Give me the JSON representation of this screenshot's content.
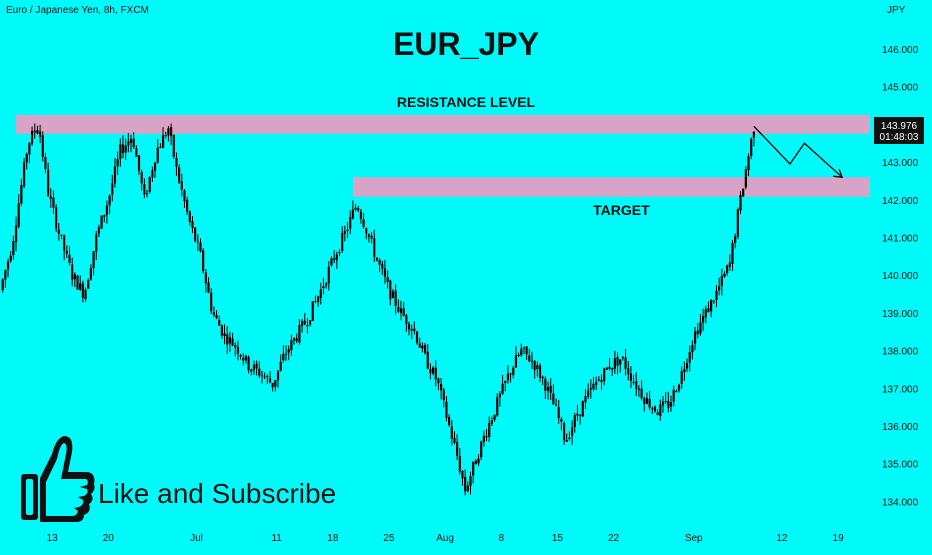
{
  "header": {
    "symbol": "Euro / Japanese Yen, 8h, FXCM",
    "title": "EUR_JPY",
    "currency": "JPY"
  },
  "price_badge": {
    "price": "143.976",
    "countdown": "01:48:03"
  },
  "footer": {
    "cta_text": "Like and Subscribe"
  },
  "colors": {
    "background": "#00fafa",
    "zone": "#d7a3c6",
    "candle": "#000000",
    "badge": "#111111"
  },
  "icons": [
    "thumbs-up-icon",
    "arrow-icon"
  ],
  "chart_data": {
    "type": "candlestick",
    "title": "EUR_JPY",
    "ylabel": "JPY",
    "ylim": [
      133.5,
      146.6
    ],
    "y_ticks": [
      "146.000",
      "145.000",
      "144.000",
      "143.000",
      "142.000",
      "141.000",
      "140.000",
      "139.000",
      "138.000",
      "137.000",
      "136.000",
      "135.000",
      "134.000"
    ],
    "x_ticks": [
      {
        "label": "13",
        "t": 13
      },
      {
        "label": "20",
        "t": 20
      },
      {
        "label": "Jul",
        "t": 31
      },
      {
        "label": "11",
        "t": 41
      },
      {
        "label": "18",
        "t": 48
      },
      {
        "label": "25",
        "t": 55
      },
      {
        "label": "Aug",
        "t": 62
      },
      {
        "label": "8",
        "t": 69
      },
      {
        "label": "15",
        "t": 76
      },
      {
        "label": "22",
        "t": 83
      },
      {
        "label": "Sep",
        "t": 93
      },
      {
        "label": "12",
        "t": 104
      },
      {
        "label": "19",
        "t": 111
      }
    ],
    "x_range": [
      6.5,
      119.5
    ],
    "zones": [
      {
        "label": "RESISTANCE LEVEL",
        "from": 143.75,
        "to": 144.25,
        "t_start": 8.5
      },
      {
        "label": "TARGET",
        "from": 142.08,
        "to": 142.6,
        "t_start": 50.5
      }
    ],
    "last_price": 143.976,
    "projection": [
      [
        100.5,
        143.95
      ],
      [
        105,
        142.95
      ],
      [
        106.8,
        143.5
      ],
      [
        111.5,
        142.6
      ]
    ],
    "closes_path": [
      [
        6.5,
        139.6
      ],
      [
        8,
        140.8
      ],
      [
        10,
        143.5
      ],
      [
        11.3,
        144.0
      ],
      [
        12.5,
        142.2
      ],
      [
        14,
        141.0
      ],
      [
        15.5,
        140.0
      ],
      [
        17,
        139.5
      ],
      [
        18.5,
        141.0
      ],
      [
        20,
        142.0
      ],
      [
        21.5,
        143.3
      ],
      [
        23,
        143.7
      ],
      [
        24.5,
        142.0
      ],
      [
        26,
        143.3
      ],
      [
        27.5,
        143.9
      ],
      [
        28.5,
        142.8
      ],
      [
        30,
        141.5
      ],
      [
        31.5,
        140.5
      ],
      [
        33,
        139.0
      ],
      [
        34.5,
        138.4
      ],
      [
        36,
        138.1
      ],
      [
        37.5,
        137.6
      ],
      [
        39,
        137.4
      ],
      [
        40.5,
        137.1
      ],
      [
        42,
        137.9
      ],
      [
        43.5,
        138.4
      ],
      [
        45,
        138.9
      ],
      [
        46.5,
        139.6
      ],
      [
        48,
        140.4
      ],
      [
        49.5,
        141.1
      ],
      [
        51,
        141.9
      ],
      [
        52.2,
        141.2
      ],
      [
        53.5,
        140.4
      ],
      [
        55,
        139.6
      ],
      [
        56.5,
        139.0
      ],
      [
        58,
        138.6
      ],
      [
        59.5,
        137.8
      ],
      [
        61,
        137.2
      ],
      [
        62.5,
        136.0
      ],
      [
        63.5,
        135.2
      ],
      [
        64.5,
        134.3
      ],
      [
        65.5,
        134.9
      ],
      [
        67,
        135.8
      ],
      [
        68.5,
        136.6
      ],
      [
        70,
        137.4
      ],
      [
        71.5,
        138.0
      ],
      [
        73,
        137.7
      ],
      [
        74.5,
        137.1
      ],
      [
        76,
        136.3
      ],
      [
        77,
        135.6
      ],
      [
        78,
        136.1
      ],
      [
        79.5,
        136.7
      ],
      [
        81,
        137.2
      ],
      [
        82.5,
        137.6
      ],
      [
        84,
        137.8
      ],
      [
        85.5,
        137.2
      ],
      [
        87,
        136.7
      ],
      [
        88.5,
        136.4
      ],
      [
        90,
        136.6
      ],
      [
        91.5,
        137.4
      ],
      [
        93,
        138.4
      ],
      [
        94.5,
        139.0
      ],
      [
        96,
        139.6
      ],
      [
        97.5,
        140.3
      ],
      [
        98.5,
        141.6
      ],
      [
        99.5,
        142.8
      ],
      [
        100.5,
        143.95
      ]
    ]
  }
}
